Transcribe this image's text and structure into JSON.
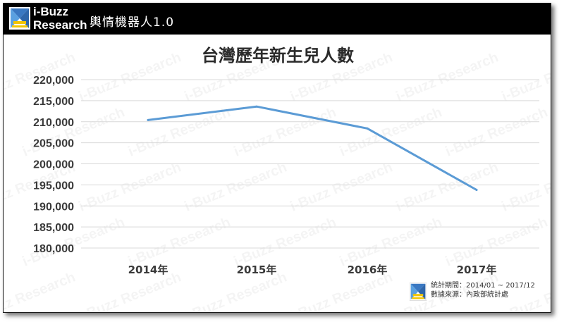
{
  "header": {
    "brand_line1": "i-Buzz",
    "brand_line2": "Research",
    "product": "輿情機器人1.0"
  },
  "footer": {
    "period": "統計期間：2014/01 ~ 2017/12",
    "source": "數據來源：內政部統計處"
  },
  "colors": {
    "header": "#000000",
    "series": "#5b9bd5",
    "grid": "#d9d9d9"
  },
  "watermark_text": "i-Buzz Research",
  "chart_data": {
    "type": "line",
    "title": "台灣歷年新生兒人數",
    "categories": [
      "2014年",
      "2015年",
      "2016年",
      "2017年"
    ],
    "series": [
      {
        "values": [
          210400,
          213600,
          208400,
          193800
        ]
      }
    ],
    "yticks": [
      "220,000",
      "215,000",
      "210,000",
      "205,000",
      "200,000",
      "195,000",
      "190,000",
      "185,000",
      "180,000"
    ],
    "ylim": [
      180000,
      220000
    ],
    "xlabel": "",
    "ylabel": "",
    "grid": true,
    "legend": "none"
  }
}
